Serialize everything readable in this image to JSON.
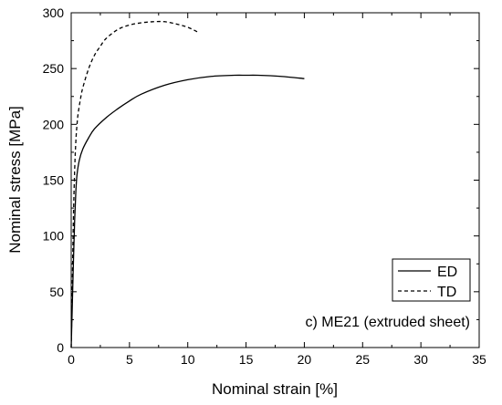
{
  "chart_data": {
    "type": "line",
    "title": "",
    "xlabel": "Nominal strain [%]",
    "ylabel": "Nominal stress [MPa]",
    "xlim": [
      0,
      35
    ],
    "ylim": [
      0,
      300
    ],
    "xticks": [
      0,
      5,
      10,
      15,
      20,
      25,
      30,
      35
    ],
    "yticks": [
      0,
      50,
      100,
      150,
      200,
      250,
      300
    ],
    "grid": false,
    "legend_position": "bottom-right",
    "annotation": "c) ME21 (extruded sheet)",
    "series": [
      {
        "name": "ED",
        "line_style": "solid",
        "color": "#000000",
        "x": [
          0,
          0.1,
          0.2,
          0.3,
          0.4,
          0.5,
          0.7,
          1.0,
          1.5,
          2.0,
          3.0,
          4.0,
          5.0,
          6.0,
          8.0,
          10.0,
          12.0,
          14.0,
          15.0,
          16.0,
          18.0,
          20.0
        ],
        "y": [
          0,
          40,
          80,
          115,
          140,
          155,
          168,
          178,
          188,
          196,
          206,
          214,
          221,
          227,
          235,
          240,
          243,
          244,
          244,
          244,
          243,
          241
        ]
      },
      {
        "name": "TD",
        "line_style": "dashed",
        "color": "#000000",
        "x": [
          0,
          0.1,
          0.2,
          0.3,
          0.4,
          0.5,
          0.6,
          0.8,
          1.0,
          1.5,
          2.0,
          2.5,
          3.0,
          4.0,
          5.0,
          6.0,
          7.0,
          8.0,
          9.0,
          10.0,
          11.0
        ],
        "y": [
          0,
          60,
          120,
          160,
          185,
          200,
          210,
          223,
          233,
          250,
          262,
          270,
          277,
          285,
          289,
          291,
          292,
          292,
          290,
          287,
          282
        ]
      }
    ]
  }
}
